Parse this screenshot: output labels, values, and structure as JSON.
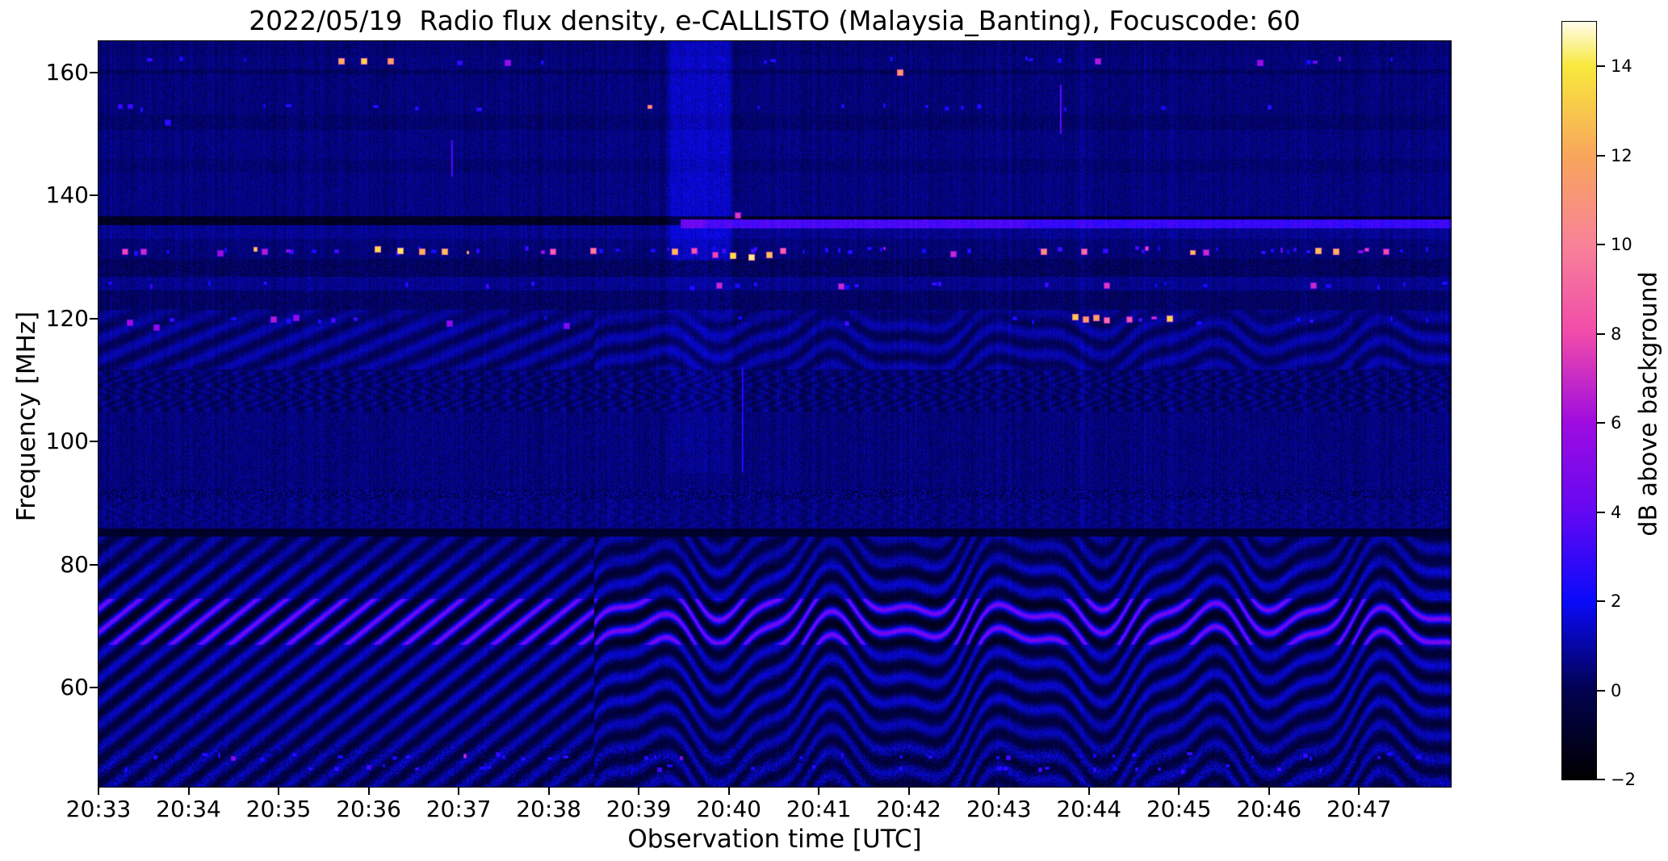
{
  "figure": {
    "background": "#ffffff",
    "axes_color": "#000000"
  },
  "chart_data": {
    "type": "heatmap",
    "title": "2022/05/19  Radio flux density, e-CALLISTO (Malaysia_Banting), Focuscode: 60",
    "xlabel": "Observation time [UTC]",
    "ylabel": "Frequency [MHz]",
    "x_ticks": [
      "20:33",
      "20:34",
      "20:35",
      "20:36",
      "20:37",
      "20:38",
      "20:39",
      "20:40",
      "20:41",
      "20:42",
      "20:43",
      "20:44",
      "20:45",
      "20:46",
      "20:47"
    ],
    "x_start": "20:33:00",
    "x_end": "20:48:01",
    "minutes_shown": 15.02,
    "y_ticks": [
      160,
      140,
      120,
      100,
      80,
      60
    ],
    "ylim": [
      43.9,
      165.1
    ],
    "grid": false,
    "colorbar": {
      "label": "dB above background",
      "vmin": -2,
      "vmax": 15,
      "ticks": [
        14,
        12,
        10,
        8,
        6,
        4,
        2,
        0,
        -2
      ],
      "tick_labels": [
        "14",
        "12",
        "10",
        "8",
        "6",
        "4",
        "2",
        "0",
        "−2"
      ],
      "colormap_stops": [
        {
          "v": -2,
          "c": "#000000"
        },
        {
          "v": 0,
          "c": "#020250"
        },
        {
          "v": 2,
          "c": "#0a0afa"
        },
        {
          "v": 4,
          "c": "#6408f3"
        },
        {
          "v": 6,
          "c": "#9e0ce0"
        },
        {
          "v": 8,
          "c": "#f04baa"
        },
        {
          "v": 10,
          "c": "#f88298"
        },
        {
          "v": 12,
          "c": "#f8a65c"
        },
        {
          "v": 14,
          "c": "#f8e83c"
        },
        {
          "v": 15,
          "c": "#fffceb"
        }
      ]
    },
    "content_description": "CALLISTO solar radio spectrogram: dark blue noise background (~0.5 dB) with vertical instrumental striping; diagonal/wavy interference fringes below 85 MHz that become chevron-shaped after 20:38.5 with a bright magenta crest band near 70 MHz; dense noisy rows near 91.5 and 48 MHz; dark horizontal lines near 136 and 85 MHz; a bright light-blue horizontal RFI line at 135.5 MHz starting 20:40.6; an enhanced-noise vertical column 135-165 MHz between 20:39.3 and 20:40.6; speckled RFI rows at 162, 131, 125 and 120 MHz with occasional yellow/white/pink bursts",
    "render": {
      "wave_start_min": 5.5,
      "fringe_spacing_px": 29,
      "column_boost": {
        "t1": 6.3,
        "t2": 7.05,
        "fmin": 129.5
      },
      "rfi_line": {
        "f1": 134.8,
        "f2": 136.15,
        "t_start": 6.46,
        "value": 3.0
      },
      "speckle_rows": [
        {
          "f": 161.9,
          "density": 0.09,
          "bright": 0.1
        },
        {
          "f": 154.2,
          "density": 0.07,
          "bright": 0.04
        },
        {
          "f": 131.0,
          "density": 0.2,
          "bright": 0.22
        },
        {
          "f": 125.4,
          "density": 0.11,
          "bright": 0.1
        },
        {
          "f": 119.6,
          "density": 0.09,
          "bright": 0.08
        },
        {
          "f": 48.8,
          "density": 0.16,
          "bright": 0.12
        },
        {
          "f": 46.8,
          "density": 0.12,
          "bright": 0.08
        }
      ],
      "hotspots": [
        [
          2.7,
          161.8,
          12.5
        ],
        [
          2.95,
          161.8,
          13.5
        ],
        [
          3.25,
          161.8,
          12.0
        ],
        [
          4.55,
          161.5,
          6.0
        ],
        [
          8.9,
          160.0,
          11.5
        ],
        [
          11.1,
          161.8,
          6.5
        ],
        [
          12.9,
          161.5,
          6.0
        ],
        [
          0.77,
          151.8,
          2.9
        ],
        [
          7.1,
          136.8,
          7.5
        ],
        [
          0.3,
          130.9,
          8.0
        ],
        [
          0.5,
          130.8,
          7.0
        ],
        [
          1.35,
          130.6,
          6.0
        ],
        [
          1.85,
          130.9,
          6.5
        ],
        [
          3.1,
          131.2,
          13.8
        ],
        [
          3.35,
          131.0,
          14.2
        ],
        [
          3.6,
          130.8,
          12.5
        ],
        [
          3.85,
          130.9,
          13.0
        ],
        [
          5.05,
          130.9,
          9.0
        ],
        [
          5.5,
          131.0,
          10.0
        ],
        [
          6.4,
          130.8,
          12.8
        ],
        [
          6.62,
          131.0,
          8.5
        ],
        [
          6.85,
          130.4,
          8.0
        ],
        [
          7.05,
          130.2,
          14.0
        ],
        [
          7.25,
          130.0,
          14.5
        ],
        [
          7.45,
          130.3,
          13.0
        ],
        [
          7.6,
          131.0,
          9.0
        ],
        [
          9.5,
          130.5,
          7.0
        ],
        [
          10.5,
          130.9,
          11.0
        ],
        [
          10.95,
          130.9,
          9.5
        ],
        [
          12.3,
          130.7,
          7.0
        ],
        [
          13.55,
          131.0,
          13.0
        ],
        [
          13.75,
          130.9,
          12.5
        ],
        [
          14.3,
          130.8,
          8.0
        ],
        [
          6.9,
          125.4,
          7.0
        ],
        [
          8.25,
          125.2,
          7.0
        ],
        [
          11.2,
          125.3,
          7.5
        ],
        [
          13.5,
          125.3,
          7.0
        ],
        [
          0.35,
          119.3,
          6.0
        ],
        [
          0.65,
          118.6,
          5.5
        ],
        [
          1.95,
          119.8,
          6.5
        ],
        [
          2.2,
          120.1,
          5.5
        ],
        [
          3.9,
          119.2,
          5.5
        ],
        [
          5.2,
          118.8,
          5.0
        ],
        [
          10.85,
          120.3,
          13.2
        ],
        [
          10.97,
          119.9,
          11.5
        ],
        [
          11.08,
          120.1,
          12.0
        ],
        [
          11.2,
          119.7,
          9.5
        ],
        [
          11.45,
          119.9,
          8.5
        ],
        [
          11.9,
          120.0,
          13.4
        ]
      ],
      "vertical_streaks": [
        [
          10.68,
          150,
          158,
          5.0
        ],
        [
          7.15,
          95,
          112,
          3.2
        ],
        [
          3.92,
          143,
          149,
          4.5
        ]
      ]
    }
  }
}
